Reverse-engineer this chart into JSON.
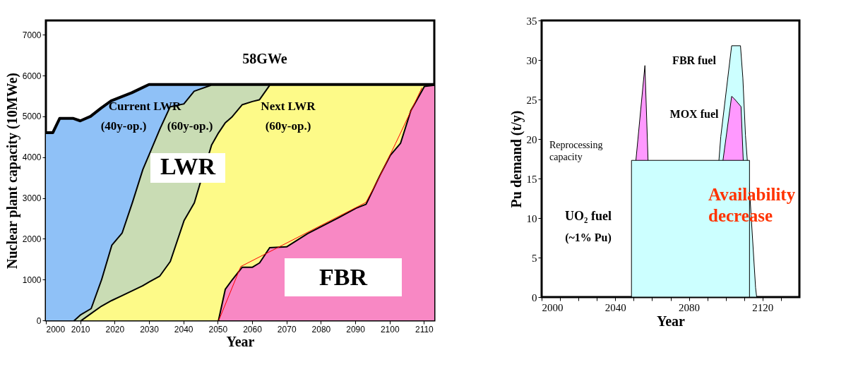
{
  "chart_data": [
    {
      "type": "area",
      "stacked": true,
      "xlabel": "Year",
      "ylabel": "Nuclear plant capacity (10MWe)",
      "xlim": [
        2000,
        2113
      ],
      "xticks": [
        2000,
        2010,
        2020,
        2030,
        2040,
        2050,
        2060,
        2070,
        2080,
        2090,
        2100,
        2110
      ],
      "ylim": [
        0,
        7350
      ],
      "yticks": [
        0,
        1000,
        2000,
        3000,
        4000,
        5000,
        6000,
        7000
      ],
      "grid": false,
      "annotations": [
        "58GWe",
        "Current LWR",
        "(40y-op.)",
        "(60y-op.)",
        "Next LWR",
        "(60y-op.)",
        "LWR",
        "FBR"
      ],
      "x": [
        2000,
        2002,
        2004,
        2008,
        2010,
        2013,
        2016,
        2019,
        2022,
        2025,
        2028,
        2030,
        2033,
        2036,
        2040,
        2043,
        2048,
        2050,
        2052,
        2054,
        2057,
        2060,
        2062,
        2065,
        2070,
        2076,
        2085,
        2090,
        2093,
        2097,
        2100,
        2103,
        2106,
        2109,
        2110,
        2113
      ],
      "series": [
        {
          "color": "#f888c4",
          "values": [
            null,
            null,
            null,
            null,
            null,
            null,
            null,
            null,
            null,
            null,
            null,
            null,
            null,
            null,
            null,
            null,
            null,
            0,
            770,
            1000,
            1320,
            1320,
            1420,
            1800,
            1820,
            2140,
            2530,
            2760,
            2860,
            3560,
            4050,
            4350,
            5150,
            5600,
            5750,
            5780
          ]
        },
        {
          "color": "#fdfa88",
          "values": [
            null,
            null,
            null,
            null,
            0,
            180,
            360,
            500,
            620,
            740,
            860,
            960,
            1100,
            1450,
            2450,
            2890,
            4300,
            4600,
            4080,
            4000,
            3980,
            4060,
            4000,
            3980,
            3960,
            3640,
            3250,
            3020,
            2920,
            2220,
            1730,
            1430,
            630,
            180,
            30,
            0
          ]
        },
        {
          "color": "#c9dcb4",
          "values": [
            null,
            null,
            null,
            0,
            150,
            120,
            640,
            1350,
            1530,
            2160,
            2840,
            3140,
            3600,
            3800,
            2870,
            2740,
            1480,
            1180,
            930,
            780,
            480,
            400,
            360,
            0,
            null,
            null,
            null,
            null,
            null,
            null,
            null,
            null,
            null,
            null,
            null,
            null
          ]
        },
        {
          "color": "#8fc1f7",
          "values": [
            4600,
            4600,
            4950,
            4950,
            4740,
            4700,
            4200,
            3530,
            3330,
            2680,
            2000,
            1680,
            1080,
            530,
            460,
            150,
            0,
            null,
            null,
            null,
            null,
            null,
            null,
            null,
            null,
            null,
            null,
            null,
            null,
            null,
            null,
            null,
            null,
            null,
            null,
            null
          ]
        },
        {
          "type": "line",
          "color": "#ff0000",
          "x": [
            2050.3,
            2056.7,
            2093.1,
            2096.6,
            2101.7,
            2109.4
          ],
          "values": [
            0,
            1320,
            2890,
            3440,
            4330,
            5700
          ]
        }
      ]
    },
    {
      "type": "area",
      "xlabel": "Year",
      "ylabel": "Pu demand (t/y)",
      "xlim": [
        2000,
        2140
      ],
      "xticks": [
        2000,
        {
          "value": 2010,
          "label": null
        },
        {
          "value": 2020,
          "label": null
        },
        {
          "value": 2030,
          "label": null
        },
        2040,
        {
          "value": 2050,
          "label": null
        },
        {
          "value": 2060,
          "label": null
        },
        {
          "value": 2070,
          "label": null
        },
        2080,
        {
          "value": 2090,
          "label": null
        },
        {
          "value": 2100,
          "label": null
        },
        {
          "value": 2110,
          "label": null
        },
        2120,
        {
          "value": 2130,
          "label": null
        }
      ],
      "ylim": [
        0,
        35
      ],
      "yticks": [
        0,
        5,
        10,
        15,
        20,
        25,
        30,
        35
      ],
      "grid": false,
      "annotations": [
        "FBR fuel",
        "MOX fuel",
        "Reprocessing capacity",
        "UO₂ fuel",
        "(~1% Pu)",
        "Availability decrease"
      ],
      "series": [
        {
          "color": "#ccffff",
          "x": [
            2096.3,
            2097.3,
            2103.2,
            2108,
            2109.3,
            2110.7,
            2113.2,
            2116.2,
            2116.8
          ],
          "values": [
            17.3,
            20.3,
            31.8,
            31.8,
            27.7,
            20.5,
            12.5,
            1.2,
            0
          ]
        },
        {
          "color": "#ff99ff",
          "x": [
            2051.2,
            2056.1,
            2057.8
          ],
          "values": [
            17.3,
            29.3,
            17.3
          ]
        },
        {
          "color": "#ff99ff",
          "x": [
            2098.5,
            2103.2,
            2104.6,
            2108.3,
            2109.5
          ],
          "values": [
            17.3,
            25.4,
            25.1,
            24.1,
            17.3
          ]
        },
        {
          "color": "#ccffff",
          "x": [
            2048.8,
            2112.9
          ],
          "values": [
            17.3,
            17.3
          ]
        }
      ]
    }
  ]
}
